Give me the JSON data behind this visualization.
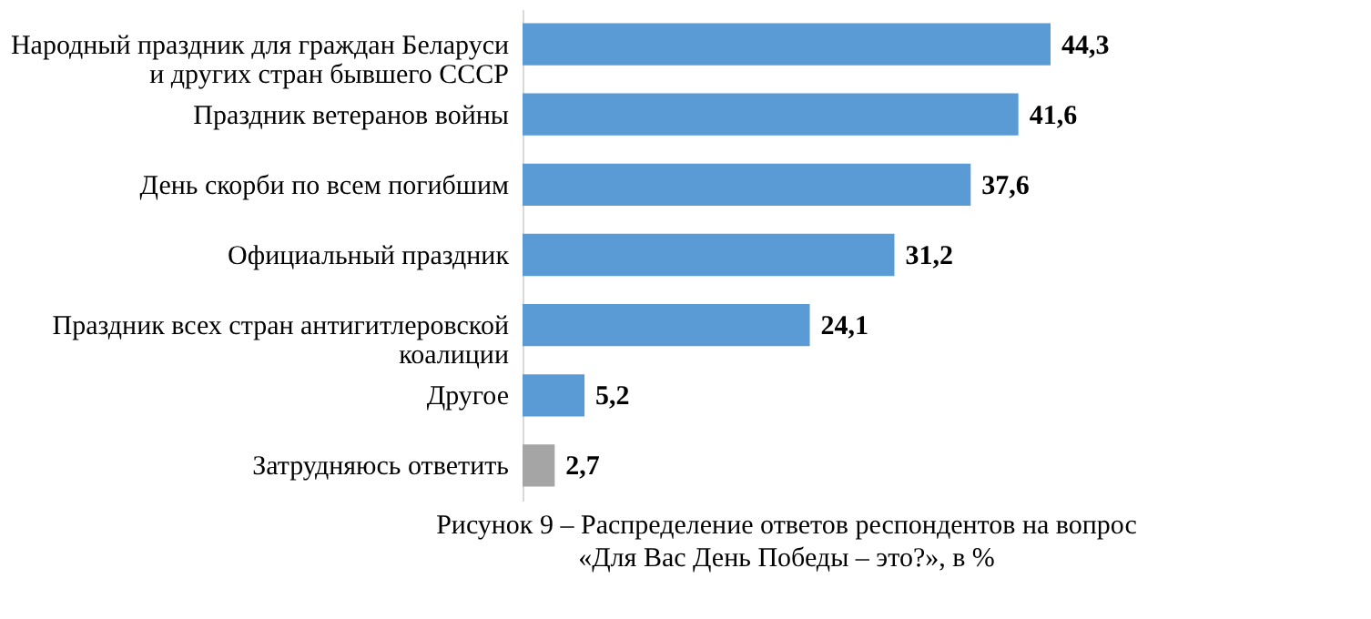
{
  "chart_data": {
    "type": "bar",
    "orientation": "horizontal",
    "categories": [
      "Народный праздник для граждан Беларуси\nи других стран бывшего СССР",
      "Праздник ветеранов войны",
      "День скорби по всем погибшим",
      "Официальный праздник",
      "Праздник всех стран антигитлеровской\nкоалиции",
      "Другое",
      "Затрудняюсь ответить"
    ],
    "values": [
      44.3,
      41.6,
      37.6,
      31.2,
      24.1,
      5.2,
      2.7
    ],
    "colors": [
      "#5b9bd5",
      "#5b9bd5",
      "#5b9bd5",
      "#5b9bd5",
      "#5b9bd5",
      "#5b9bd5",
      "#a5a5a5"
    ],
    "value_labels": [
      "44,3",
      "41,6",
      "37,6",
      "31,2",
      "24,1",
      "5,2",
      "2,7"
    ],
    "annotations": [
      "Рисунок 9 – Распределение ответов респондентов на вопрос\n«Для Вас День Победы – это?», в %"
    ],
    "grid": false
  }
}
